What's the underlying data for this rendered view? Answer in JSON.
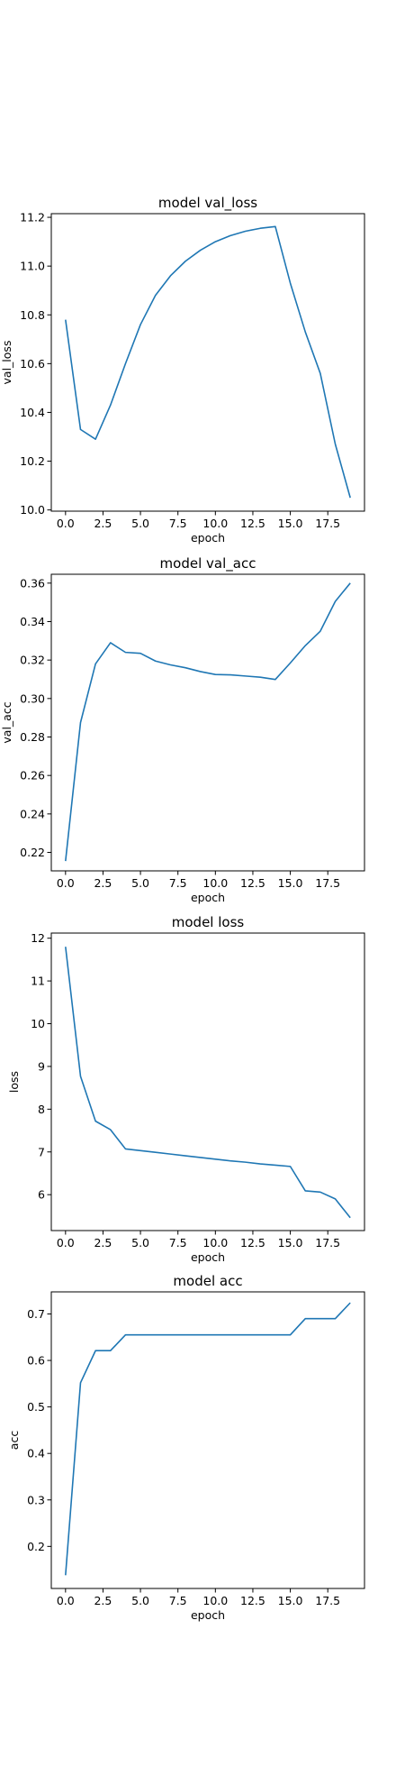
{
  "chart_data": [
    {
      "type": "line",
      "title": "model val_loss",
      "xlabel": "epoch",
      "ylabel": "val_loss",
      "xlim": [
        -0.95,
        19.95
      ],
      "ylim": [
        9.995,
        11.215
      ],
      "xticks": [
        0.0,
        2.5,
        5.0,
        7.5,
        10.0,
        12.5,
        15.0,
        17.5
      ],
      "xtick_labels": [
        "0.0",
        "2.5",
        "5.0",
        "7.5",
        "10.0",
        "12.5",
        "15.0",
        "17.5"
      ],
      "yticks": [
        10.0,
        10.2,
        10.4,
        10.6,
        10.8,
        11.0,
        11.2
      ],
      "ytick_labels": [
        "10.0",
        "10.2",
        "10.4",
        "10.6",
        "10.8",
        "11.0",
        "11.2"
      ],
      "grid": false,
      "color": "#1f77b4",
      "x": [
        0,
        1,
        2,
        3,
        4,
        5,
        6,
        7,
        8,
        9,
        10,
        11,
        12,
        13,
        14,
        15,
        16,
        17,
        18,
        19
      ],
      "y": [
        10.78,
        10.33,
        10.29,
        10.43,
        10.6,
        10.76,
        10.88,
        10.96,
        11.02,
        11.065,
        11.1,
        11.125,
        11.143,
        11.155,
        11.162,
        10.93,
        10.73,
        10.56,
        10.27,
        10.05
      ]
    },
    {
      "type": "line",
      "title": "model val_acc",
      "xlabel": "epoch",
      "ylabel": "val_acc",
      "xlim": [
        -0.95,
        19.95
      ],
      "ylim": [
        0.2104,
        0.3646
      ],
      "xticks": [
        0.0,
        2.5,
        5.0,
        7.5,
        10.0,
        12.5,
        15.0,
        17.5
      ],
      "xtick_labels": [
        "0.0",
        "2.5",
        "5.0",
        "7.5",
        "10.0",
        "12.5",
        "15.0",
        "17.5"
      ],
      "yticks": [
        0.22,
        0.24,
        0.26,
        0.28,
        0.3,
        0.32,
        0.34,
        0.36
      ],
      "ytick_labels": [
        "0.22",
        "0.24",
        "0.26",
        "0.28",
        "0.30",
        "0.32",
        "0.34",
        "0.36"
      ],
      "grid": false,
      "color": "#1f77b4",
      "x": [
        0,
        1,
        2,
        3,
        4,
        5,
        6,
        7,
        8,
        9,
        10,
        11,
        12,
        13,
        14,
        15,
        16,
        17,
        18,
        19
      ],
      "y": [
        0.2155,
        0.2875,
        0.318,
        0.329,
        0.324,
        0.3235,
        0.3195,
        0.3175,
        0.316,
        0.314,
        0.3125,
        0.3123,
        0.3117,
        0.3111,
        0.3099,
        0.3185,
        0.3275,
        0.335,
        0.3505,
        0.36
      ]
    },
    {
      "type": "line",
      "title": "model loss",
      "xlabel": "epoch",
      "ylabel": "loss",
      "xlim": [
        -0.95,
        19.95
      ],
      "ylim": [
        5.16,
        12.12
      ],
      "xticks": [
        0.0,
        2.5,
        5.0,
        7.5,
        10.0,
        12.5,
        15.0,
        17.5
      ],
      "xtick_labels": [
        "0.0",
        "2.5",
        "5.0",
        "7.5",
        "10.0",
        "12.5",
        "15.0",
        "17.5"
      ],
      "yticks": [
        6,
        7,
        8,
        9,
        10,
        11,
        12
      ],
      "ytick_labels": [
        "6",
        "7",
        "8",
        "9",
        "10",
        "11",
        "12"
      ],
      "grid": false,
      "color": "#1f77b4",
      "x": [
        0,
        1,
        2,
        3,
        4,
        5,
        6,
        7,
        8,
        9,
        10,
        11,
        12,
        13,
        14,
        15,
        16,
        17,
        18,
        19
      ],
      "y": [
        11.8,
        8.77,
        7.72,
        7.52,
        7.07,
        7.03,
        6.99,
        6.95,
        6.91,
        6.87,
        6.83,
        6.79,
        6.76,
        6.72,
        6.69,
        6.66,
        6.09,
        6.06,
        5.9,
        5.46
      ]
    },
    {
      "type": "line",
      "title": "model acc",
      "xlabel": "epoch",
      "ylabel": "acc",
      "xlim": [
        -0.95,
        19.95
      ],
      "ylim": [
        0.1095,
        0.7475
      ],
      "xticks": [
        0.0,
        2.5,
        5.0,
        7.5,
        10.0,
        12.5,
        15.0,
        17.5
      ],
      "xtick_labels": [
        "0.0",
        "2.5",
        "5.0",
        "7.5",
        "10.0",
        "12.5",
        "15.0",
        "17.5"
      ],
      "yticks": [
        0.2,
        0.3,
        0.4,
        0.5,
        0.6,
        0.7
      ],
      "ytick_labels": [
        "0.2",
        "0.3",
        "0.4",
        "0.5",
        "0.6",
        "0.7"
      ],
      "grid": false,
      "color": "#1f77b4",
      "x": [
        0,
        1,
        2,
        3,
        4,
        5,
        6,
        7,
        8,
        9,
        10,
        11,
        12,
        13,
        14,
        15,
        16,
        17,
        18,
        19
      ],
      "y": [
        0.138,
        0.552,
        0.621,
        0.621,
        0.655,
        0.655,
        0.655,
        0.655,
        0.655,
        0.655,
        0.655,
        0.655,
        0.655,
        0.655,
        0.655,
        0.655,
        0.69,
        0.69,
        0.69,
        0.724
      ]
    }
  ]
}
